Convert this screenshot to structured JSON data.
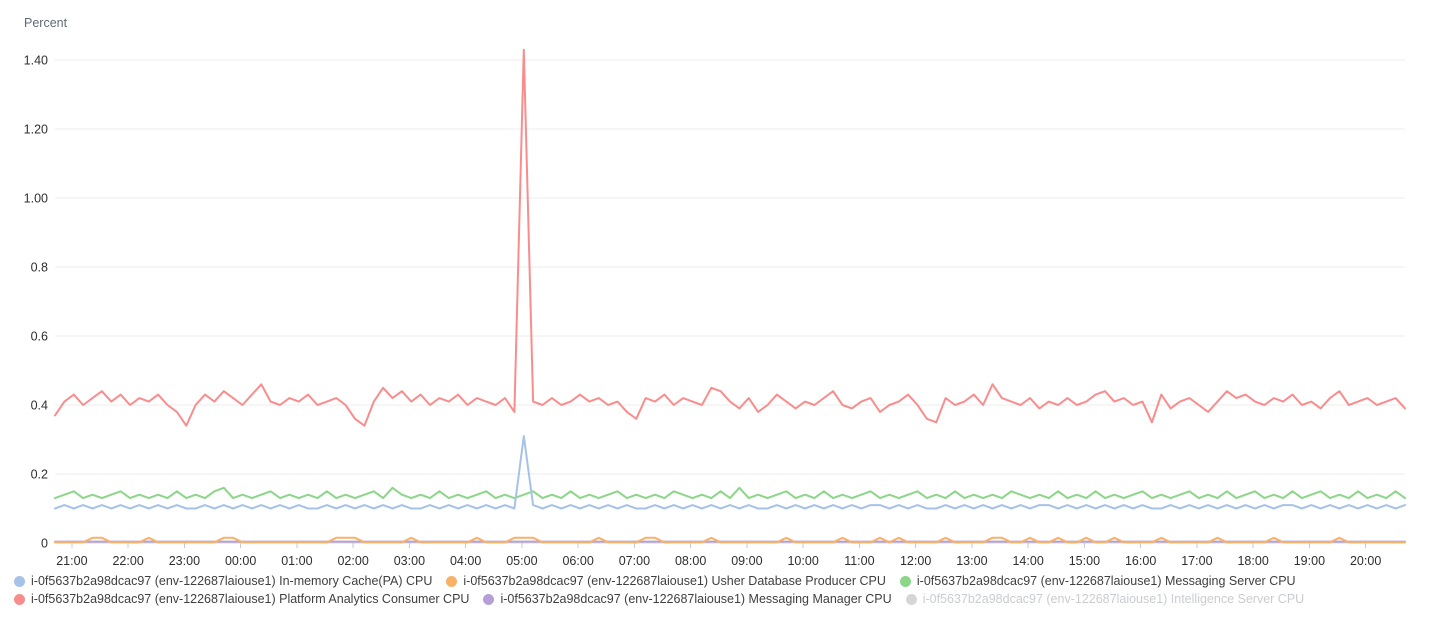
{
  "chart_data": {
    "type": "line",
    "title": "",
    "xlabel": "",
    "ylabel": "Percent",
    "ylim": [
      0,
      1.45
    ],
    "grid": "horizontal-only",
    "legend_position": "bottom",
    "y_ticks": [
      {
        "value": 0,
        "label": "0"
      },
      {
        "value": 0.2,
        "label": "0.2"
      },
      {
        "value": 0.4,
        "label": "0.4"
      },
      {
        "value": 0.6,
        "label": "0.6"
      },
      {
        "value": 0.8,
        "label": "0.8"
      },
      {
        "value": 1.0,
        "label": "1.00"
      },
      {
        "value": 1.2,
        "label": "1.20"
      },
      {
        "value": 1.4,
        "label": "1.40"
      }
    ],
    "x_ticks": [
      "21:00",
      "22:00",
      "23:00",
      "00:00",
      "01:00",
      "02:00",
      "03:00",
      "04:00",
      "05:00",
      "06:00",
      "07:00",
      "08:00",
      "09:00",
      "10:00",
      "11:00",
      "12:00",
      "13:00",
      "14:00",
      "15:00",
      "16:00",
      "17:00",
      "18:00",
      "19:00",
      "20:00"
    ],
    "x_start_offset_min": 18,
    "x_total_min": 1440,
    "x_interval_minutes": 10,
    "draw_order": [
      4,
      1,
      2,
      0,
      3
    ],
    "series": [
      {
        "name": "i-0f5637b2a98dcac97 (env-122687laiouse1) In-memory Cache(PA) CPU",
        "color": "#a6c2e8",
        "enabled": true,
        "values": [
          0.1,
          0.11,
          0.1,
          0.11,
          0.1,
          0.11,
          0.1,
          0.11,
          0.1,
          0.11,
          0.1,
          0.11,
          0.1,
          0.11,
          0.1,
          0.1,
          0.11,
          0.1,
          0.11,
          0.1,
          0.11,
          0.1,
          0.11,
          0.1,
          0.11,
          0.1,
          0.11,
          0.1,
          0.1,
          0.11,
          0.1,
          0.11,
          0.1,
          0.11,
          0.1,
          0.11,
          0.1,
          0.11,
          0.1,
          0.1,
          0.11,
          0.1,
          0.11,
          0.1,
          0.11,
          0.1,
          0.11,
          0.1,
          0.11,
          0.1,
          0.31,
          0.11,
          0.1,
          0.11,
          0.1,
          0.11,
          0.1,
          0.11,
          0.1,
          0.11,
          0.1,
          0.11,
          0.1,
          0.1,
          0.11,
          0.1,
          0.11,
          0.1,
          0.11,
          0.1,
          0.11,
          0.1,
          0.11,
          0.1,
          0.11,
          0.1,
          0.1,
          0.11,
          0.1,
          0.11,
          0.1,
          0.11,
          0.1,
          0.11,
          0.1,
          0.11,
          0.1,
          0.11,
          0.11,
          0.1,
          0.11,
          0.1,
          0.11,
          0.1,
          0.1,
          0.11,
          0.1,
          0.11,
          0.1,
          0.11,
          0.1,
          0.11,
          0.1,
          0.11,
          0.1,
          0.11,
          0.11,
          0.1,
          0.11,
          0.1,
          0.11,
          0.1,
          0.11,
          0.1,
          0.11,
          0.1,
          0.11,
          0.1,
          0.1,
          0.11,
          0.1,
          0.11,
          0.1,
          0.11,
          0.1,
          0.11,
          0.1,
          0.11,
          0.1,
          0.11,
          0.1,
          0.11,
          0.11,
          0.1,
          0.11,
          0.1,
          0.11,
          0.1,
          0.11,
          0.1,
          0.11,
          0.1,
          0.11,
          0.1,
          0.11
        ]
      },
      {
        "name": "i-0f5637b2a98dcac97 (env-122687laiouse1) Usher Database Producer CPU",
        "color": "#f9b168",
        "enabled": true,
        "values": [
          0.002,
          0.002,
          0.002,
          0.002,
          0.015,
          0.015,
          0.002,
          0.002,
          0.002,
          0.002,
          0.015,
          0.002,
          0.002,
          0.002,
          0.002,
          0.002,
          0.002,
          0.002,
          0.015,
          0.015,
          0.002,
          0.002,
          0.002,
          0.002,
          0.002,
          0.002,
          0.002,
          0.002,
          0.002,
          0.002,
          0.015,
          0.015,
          0.015,
          0.002,
          0.002,
          0.002,
          0.002,
          0.002,
          0.015,
          0.002,
          0.002,
          0.002,
          0.002,
          0.002,
          0.002,
          0.015,
          0.002,
          0.002,
          0.002,
          0.015,
          0.015,
          0.015,
          0.002,
          0.002,
          0.002,
          0.002,
          0.002,
          0.002,
          0.015,
          0.002,
          0.002,
          0.002,
          0.002,
          0.015,
          0.015,
          0.002,
          0.002,
          0.002,
          0.002,
          0.002,
          0.015,
          0.002,
          0.002,
          0.002,
          0.002,
          0.002,
          0.002,
          0.002,
          0.015,
          0.002,
          0.002,
          0.002,
          0.002,
          0.002,
          0.015,
          0.002,
          0.002,
          0.002,
          0.015,
          0.002,
          0.015,
          0.002,
          0.002,
          0.002,
          0.002,
          0.015,
          0.002,
          0.002,
          0.002,
          0.002,
          0.015,
          0.015,
          0.002,
          0.002,
          0.015,
          0.002,
          0.002,
          0.015,
          0.002,
          0.002,
          0.015,
          0.002,
          0.002,
          0.015,
          0.002,
          0.002,
          0.002,
          0.002,
          0.015,
          0.002,
          0.002,
          0.002,
          0.002,
          0.002,
          0.015,
          0.002,
          0.002,
          0.002,
          0.002,
          0.002,
          0.015,
          0.002,
          0.002,
          0.002,
          0.002,
          0.002,
          0.002,
          0.015,
          0.002,
          0.002,
          0.002,
          0.002,
          0.002,
          0.002,
          0.002
        ]
      },
      {
        "name": "i-0f5637b2a98dcac97 (env-122687laiouse1) Messaging Server CPU",
        "color": "#8cd689",
        "enabled": true,
        "values": [
          0.13,
          0.14,
          0.15,
          0.13,
          0.14,
          0.13,
          0.14,
          0.15,
          0.13,
          0.14,
          0.13,
          0.14,
          0.13,
          0.15,
          0.13,
          0.14,
          0.13,
          0.15,
          0.16,
          0.13,
          0.14,
          0.13,
          0.14,
          0.15,
          0.13,
          0.14,
          0.13,
          0.14,
          0.13,
          0.15,
          0.13,
          0.14,
          0.13,
          0.14,
          0.15,
          0.13,
          0.16,
          0.14,
          0.13,
          0.14,
          0.13,
          0.15,
          0.13,
          0.14,
          0.13,
          0.14,
          0.15,
          0.13,
          0.14,
          0.13,
          0.14,
          0.15,
          0.13,
          0.14,
          0.13,
          0.15,
          0.13,
          0.14,
          0.13,
          0.14,
          0.15,
          0.13,
          0.14,
          0.13,
          0.14,
          0.13,
          0.15,
          0.14,
          0.13,
          0.14,
          0.13,
          0.15,
          0.13,
          0.16,
          0.13,
          0.14,
          0.13,
          0.14,
          0.15,
          0.13,
          0.14,
          0.13,
          0.15,
          0.13,
          0.14,
          0.13,
          0.14,
          0.15,
          0.13,
          0.14,
          0.13,
          0.14,
          0.15,
          0.13,
          0.14,
          0.13,
          0.15,
          0.13,
          0.14,
          0.13,
          0.14,
          0.13,
          0.15,
          0.14,
          0.13,
          0.14,
          0.13,
          0.15,
          0.13,
          0.14,
          0.13,
          0.15,
          0.13,
          0.14,
          0.13,
          0.14,
          0.15,
          0.13,
          0.14,
          0.13,
          0.14,
          0.15,
          0.13,
          0.14,
          0.13,
          0.15,
          0.13,
          0.14,
          0.15,
          0.13,
          0.14,
          0.13,
          0.15,
          0.13,
          0.14,
          0.15,
          0.13,
          0.14,
          0.13,
          0.15,
          0.13,
          0.14,
          0.13,
          0.15,
          0.13
        ]
      },
      {
        "name": "i-0f5637b2a98dcac97 (env-122687laiouse1) Platform Analytics Consumer CPU",
        "color": "#f98d8d",
        "enabled": true,
        "values": [
          0.37,
          0.41,
          0.43,
          0.4,
          0.42,
          0.44,
          0.41,
          0.43,
          0.4,
          0.42,
          0.41,
          0.43,
          0.4,
          0.38,
          0.34,
          0.4,
          0.43,
          0.41,
          0.44,
          0.42,
          0.4,
          0.43,
          0.46,
          0.41,
          0.4,
          0.42,
          0.41,
          0.43,
          0.4,
          0.41,
          0.42,
          0.4,
          0.36,
          0.34,
          0.41,
          0.45,
          0.42,
          0.44,
          0.41,
          0.43,
          0.4,
          0.42,
          0.41,
          0.43,
          0.4,
          0.42,
          0.41,
          0.4,
          0.42,
          0.38,
          1.43,
          0.41,
          0.4,
          0.42,
          0.4,
          0.41,
          0.43,
          0.41,
          0.42,
          0.4,
          0.41,
          0.38,
          0.36,
          0.42,
          0.41,
          0.43,
          0.4,
          0.42,
          0.41,
          0.4,
          0.45,
          0.44,
          0.41,
          0.39,
          0.42,
          0.38,
          0.4,
          0.43,
          0.41,
          0.39,
          0.41,
          0.4,
          0.42,
          0.44,
          0.4,
          0.39,
          0.41,
          0.42,
          0.38,
          0.4,
          0.41,
          0.43,
          0.4,
          0.36,
          0.35,
          0.42,
          0.4,
          0.41,
          0.43,
          0.4,
          0.46,
          0.42,
          0.41,
          0.4,
          0.42,
          0.39,
          0.41,
          0.4,
          0.42,
          0.4,
          0.41,
          0.43,
          0.44,
          0.41,
          0.42,
          0.4,
          0.41,
          0.35,
          0.43,
          0.39,
          0.41,
          0.42,
          0.4,
          0.38,
          0.41,
          0.44,
          0.42,
          0.43,
          0.41,
          0.4,
          0.42,
          0.41,
          0.43,
          0.4,
          0.41,
          0.39,
          0.42,
          0.44,
          0.4,
          0.41,
          0.42,
          0.4,
          0.41,
          0.42,
          0.39
        ]
      },
      {
        "name": "i-0f5637b2a98dcac97 (env-122687laiouse1) Messaging Manager CPU",
        "color": "#b5a0d6",
        "enabled": true,
        "constant": 0.004
      },
      {
        "name": "i-0f5637b2a98dcac97 (env-122687laiouse1) Intelligence Server CPU",
        "color": "#d4d6d8",
        "enabled": false
      }
    ]
  },
  "colors": {
    "grid": "#ececec",
    "axis_line": "#d8d8d8",
    "tick_mark": "#c9c9c9",
    "tick_text": "#2f2f2f",
    "legend_text": "#3f3f3f",
    "legend_disabled_text": "#c9ccd1"
  },
  "legend": {
    "rows": [
      [
        0,
        1,
        2
      ],
      [
        3,
        4,
        5
      ]
    ]
  }
}
